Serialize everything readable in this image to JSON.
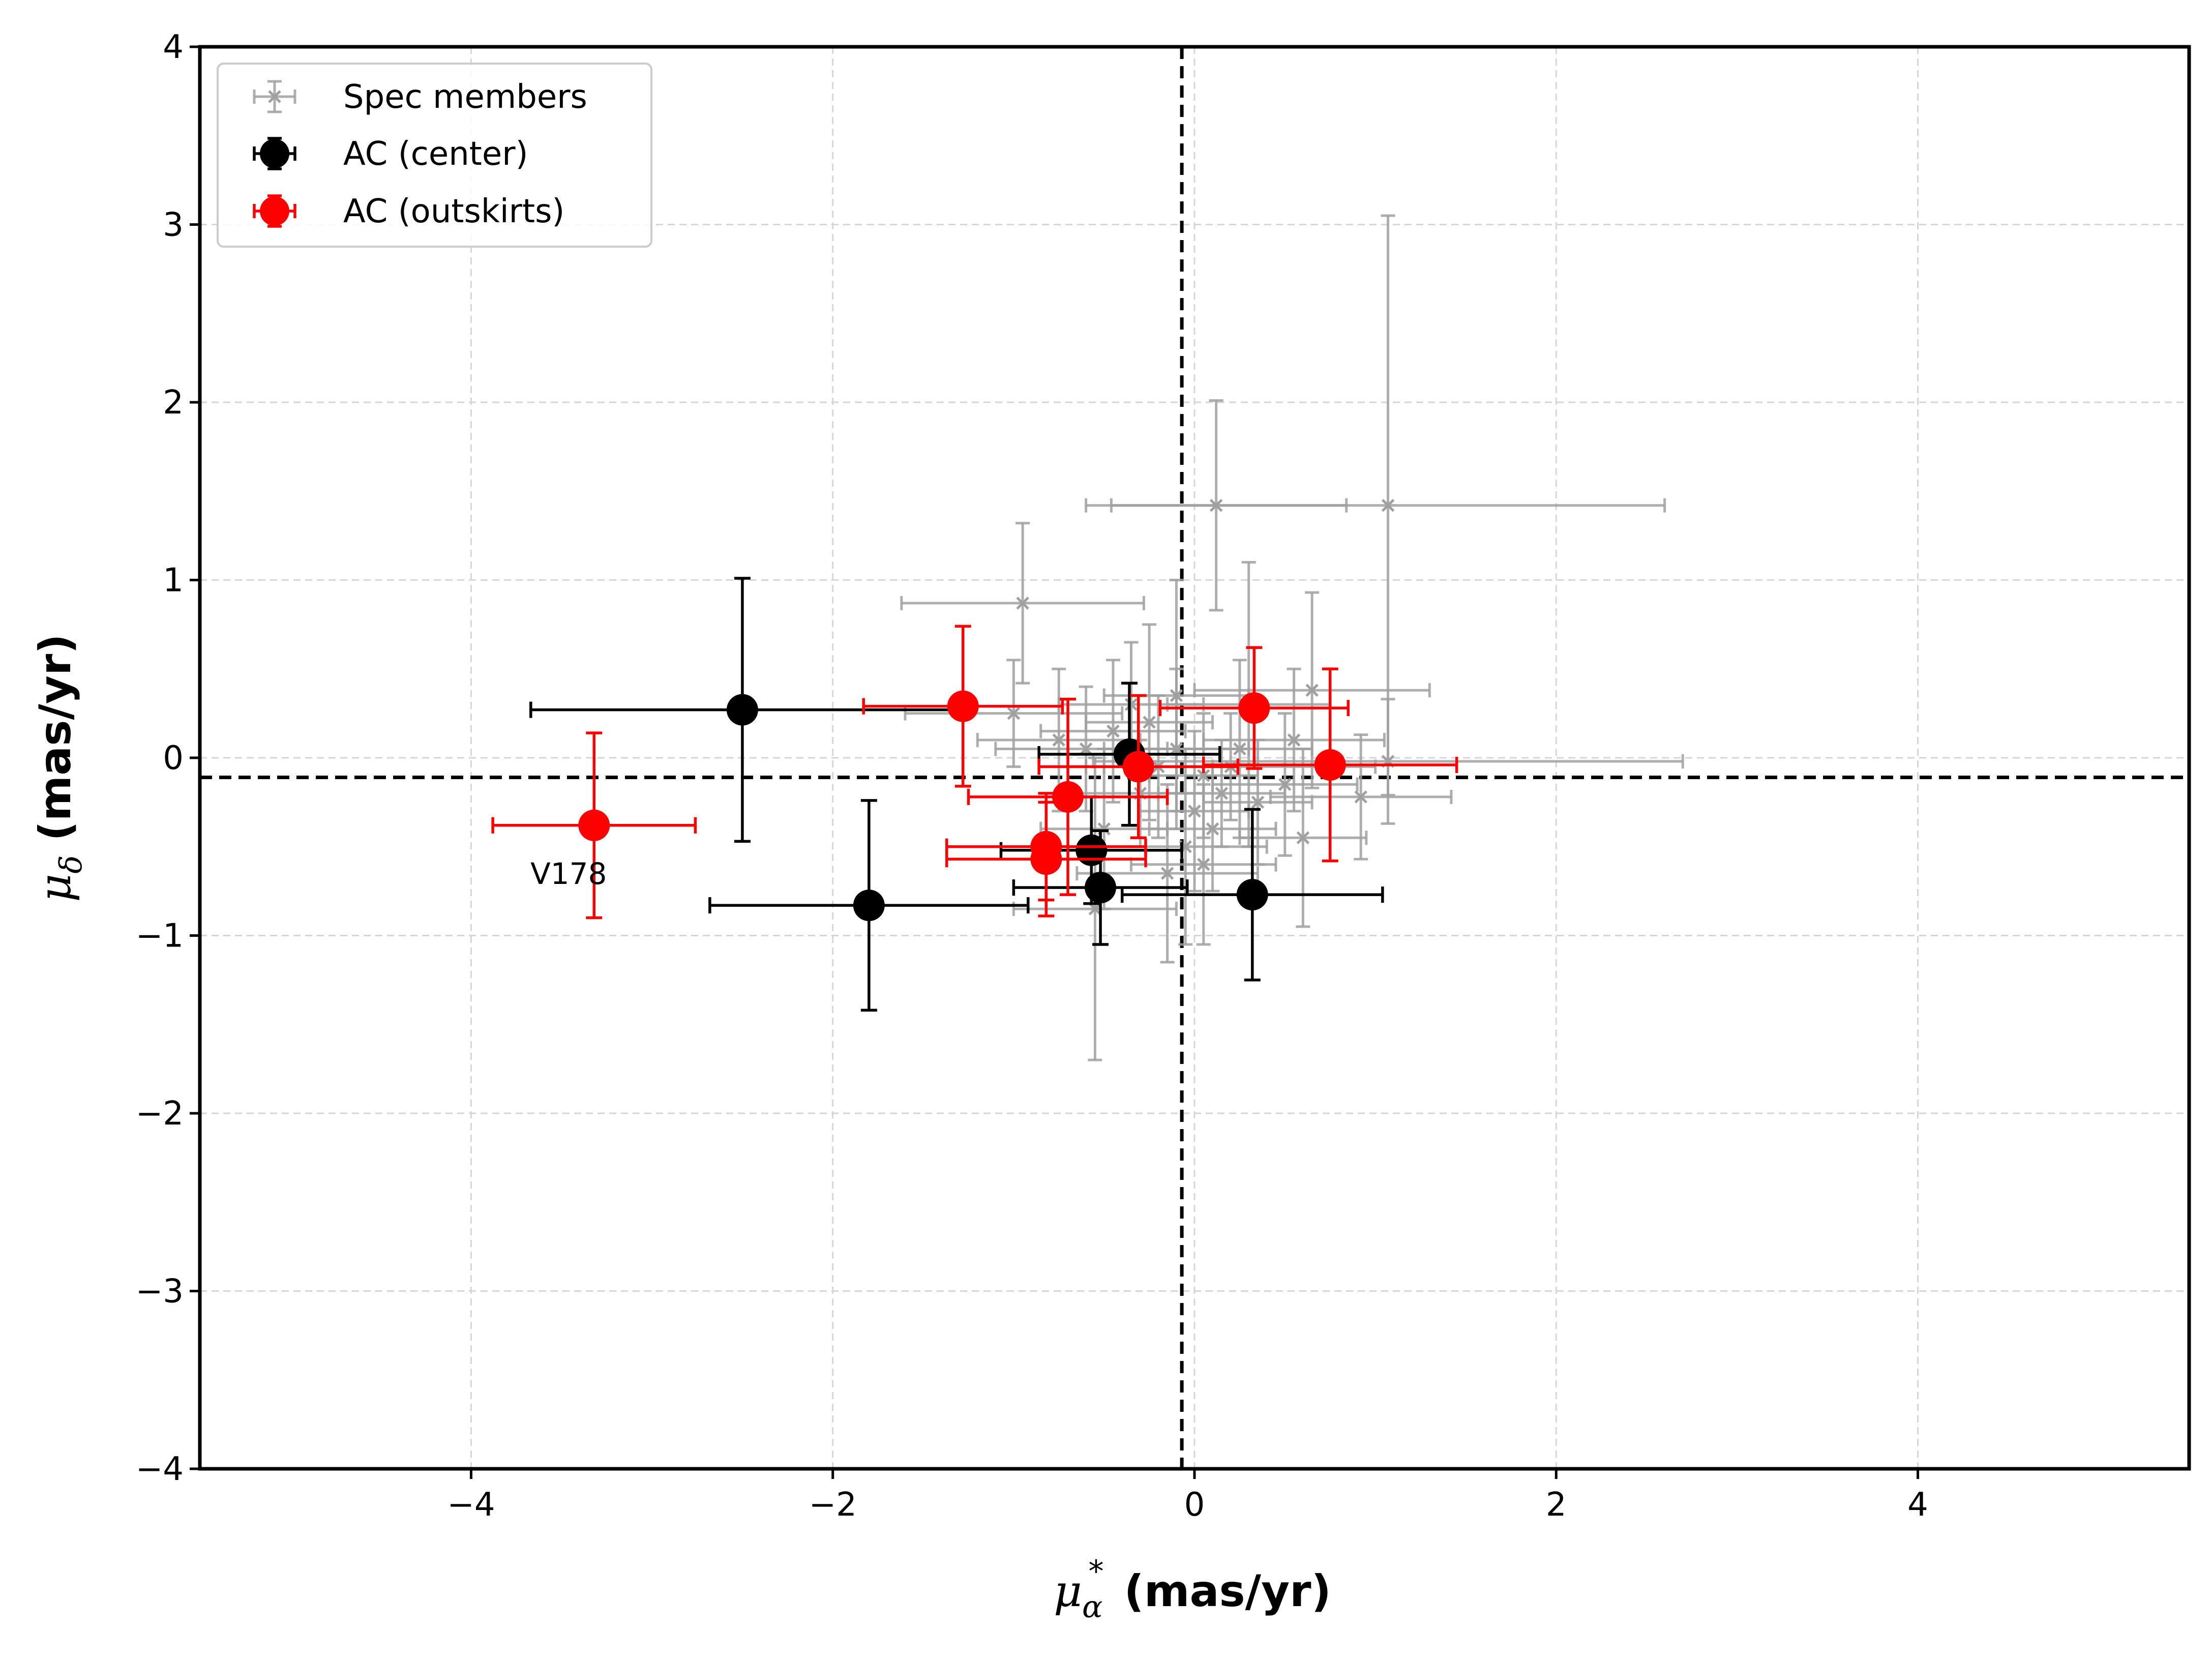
{
  "chart_data": {
    "type": "scatter",
    "xlabel_symbol": "μ",
    "xlabel_sub": "α",
    "xlabel_sup": "*",
    "xlabel_unit": "(mas/yr)",
    "ylabel_symbol": "μ",
    "ylabel_sub": "δ",
    "ylabel_unit": "(mas/yr)",
    "xlim": [
      -5.5,
      5.5
    ],
    "ylim": [
      -4,
      4
    ],
    "xticks": [
      -4,
      -2,
      0,
      2,
      4
    ],
    "yticks": [
      -4,
      -3,
      -2,
      -1,
      0,
      1,
      2,
      3,
      4
    ],
    "xtick_labels": [
      "−4",
      "−2",
      "0",
      "2",
      "4"
    ],
    "ytick_labels": [
      "−4",
      "−3",
      "−2",
      "−1",
      "0",
      "1",
      "2",
      "3",
      "4"
    ],
    "grid": true,
    "reference_lines": {
      "vertical_x": -0.07,
      "horizontal_y": -0.11
    },
    "legend_position": "upper-left",
    "series": [
      {
        "name": "Spec members",
        "color": "#a0a0a0",
        "marker": "x",
        "points": [
          {
            "x": 0.12,
            "y": 1.42,
            "xerr": 0.72,
            "yerr": 0.59
          },
          {
            "x": 1.07,
            "y": 1.42,
            "xerr": 1.53,
            "yerr": 1.63
          },
          {
            "x": -0.95,
            "y": 0.87,
            "xerr": 0.67,
            "yerr": 0.45
          },
          {
            "x": -0.25,
            "y": 0.2,
            "xerr": 0.35,
            "yerr": 0.55
          },
          {
            "x": -0.45,
            "y": 0.15,
            "xerr": 0.4,
            "yerr": 0.4
          },
          {
            "x": -0.6,
            "y": 0.05,
            "xerr": 0.5,
            "yerr": 0.35
          },
          {
            "x": -1.0,
            "y": 0.25,
            "xerr": 0.6,
            "yerr": 0.3
          },
          {
            "x": -0.1,
            "y": 0.05,
            "xerr": 0.4,
            "yerr": 0.45
          },
          {
            "x": 0.05,
            "y": -0.1,
            "xerr": 0.3,
            "yerr": 0.35
          },
          {
            "x": 0.15,
            "y": -0.2,
            "xerr": 0.35,
            "yerr": 0.3
          },
          {
            "x": -0.2,
            "y": -0.05,
            "xerr": 0.3,
            "yerr": 0.4
          },
          {
            "x": 0.25,
            "y": 0.05,
            "xerr": 0.4,
            "yerr": 0.5
          },
          {
            "x": 0.35,
            "y": -0.25,
            "xerr": 0.3,
            "yerr": 0.35
          },
          {
            "x": -0.3,
            "y": -0.2,
            "xerr": 0.35,
            "yerr": 0.3
          },
          {
            "x": 0.0,
            "y": -0.3,
            "xerr": 0.3,
            "yerr": 0.45
          },
          {
            "x": 0.1,
            "y": -0.4,
            "xerr": 0.35,
            "yerr": 0.35
          },
          {
            "x": 0.05,
            "y": -0.6,
            "xerr": 0.4,
            "yerr": 0.45
          },
          {
            "x": 0.5,
            "y": -0.15,
            "xerr": 0.4,
            "yerr": 0.4
          },
          {
            "x": 0.55,
            "y": 0.1,
            "xerr": 0.5,
            "yerr": 0.4
          },
          {
            "x": 0.65,
            "y": 0.38,
            "xerr": 0.65,
            "yerr": 0.55
          },
          {
            "x": 0.92,
            "y": -0.22,
            "xerr": 0.5,
            "yerr": 0.35
          },
          {
            "x": 1.07,
            "y": -0.02,
            "xerr": 1.63,
            "yerr": 0.35
          },
          {
            "x": -0.05,
            "y": -0.5,
            "xerr": 0.45,
            "yerr": 0.55
          },
          {
            "x": -0.15,
            "y": -0.65,
            "xerr": 0.5,
            "yerr": 0.5
          },
          {
            "x": -0.1,
            "y": 0.35,
            "xerr": 0.4,
            "yerr": 0.65
          },
          {
            "x": 0.3,
            "y": 0.3,
            "xerr": 0.45,
            "yerr": 0.8
          },
          {
            "x": -0.5,
            "y": -0.4,
            "xerr": 0.35,
            "yerr": 0.45
          },
          {
            "x": -0.55,
            "y": -0.85,
            "xerr": 0.45,
            "yerr": 0.85
          },
          {
            "x": 0.6,
            "y": -0.45,
            "xerr": 0.35,
            "yerr": 0.5
          },
          {
            "x": -0.75,
            "y": 0.1,
            "xerr": 0.45,
            "yerr": 0.4
          },
          {
            "x": 0.2,
            "y": -0.05,
            "xerr": 0.8,
            "yerr": 0.3
          },
          {
            "x": -0.35,
            "y": 0.3,
            "xerr": 0.4,
            "yerr": 0.35
          }
        ]
      },
      {
        "name": "AC (center)",
        "color": "#000000",
        "marker": "o",
        "points": [
          {
            "x": -2.5,
            "y": 0.27,
            "xerr": 1.17,
            "yerr": 0.74
          },
          {
            "x": -1.8,
            "y": -0.83,
            "xerr": 0.88,
            "yerr": 0.59
          },
          {
            "x": -0.36,
            "y": 0.02,
            "xerr": 0.5,
            "yerr": 0.4
          },
          {
            "x": -0.57,
            "y": -0.52,
            "xerr": 0.5,
            "yerr": 0.3
          },
          {
            "x": -0.52,
            "y": -0.73,
            "xerr": 0.48,
            "yerr": 0.32
          },
          {
            "x": 0.32,
            "y": -0.77,
            "xerr": 0.72,
            "yerr": 0.48
          }
        ]
      },
      {
        "name": "AC (outskirts)",
        "color": "#ff0000",
        "marker": "o",
        "points": [
          {
            "x": -3.32,
            "y": -0.38,
            "xerr": 0.56,
            "yerr": 0.52,
            "label": "V178"
          },
          {
            "x": -1.28,
            "y": 0.29,
            "xerr": 0.55,
            "yerr": 0.45
          },
          {
            "x": -0.7,
            "y": -0.22,
            "xerr": 0.55,
            "yerr": 0.55
          },
          {
            "x": -0.82,
            "y": -0.5,
            "xerr": 0.55,
            "yerr": 0.3
          },
          {
            "x": -0.82,
            "y": -0.57,
            "xerr": 0.55,
            "yerr": 0.32
          },
          {
            "x": -0.31,
            "y": -0.05,
            "xerr": 0.55,
            "yerr": 0.4
          },
          {
            "x": 0.33,
            "y": 0.28,
            "xerr": 0.52,
            "yerr": 0.34
          },
          {
            "x": 0.75,
            "y": -0.04,
            "xerr": 0.7,
            "yerr": 0.54
          }
        ]
      }
    ]
  }
}
